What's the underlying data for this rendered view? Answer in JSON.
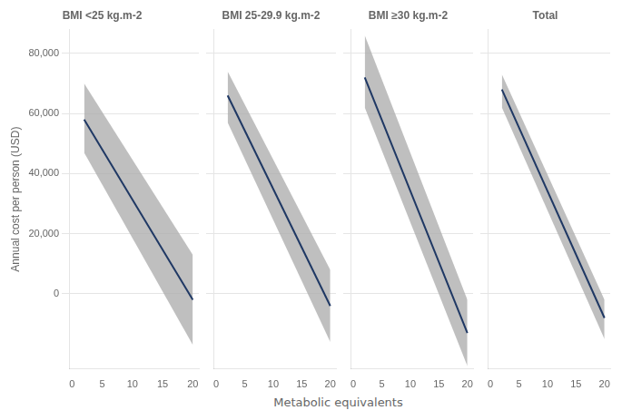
{
  "chart_data": [
    {
      "type": "line",
      "title": "BMI <25 kg.m-2",
      "xlabel": "Metabolic equivalents",
      "ylabel": "Annual cost per person (USD)",
      "x": [
        2,
        20
      ],
      "series": [
        {
          "type": "line",
          "color": "#1f3864",
          "values": [
            58000,
            -2000
          ]
        },
        {
          "type": "band",
          "color": "#aaaaaa",
          "lower": [
            47000,
            -17000
          ],
          "upper": [
            70000,
            13000
          ]
        }
      ],
      "xlim": [
        -0.5,
        21
      ],
      "xticks": [
        0,
        5,
        10,
        15,
        20
      ],
      "ylim": [
        -25000,
        88000
      ],
      "yticks": [
        0,
        {
          "value": 20000,
          "label": "20,000"
        },
        {
          "value": 40000,
          "label": "40,000"
        },
        {
          "value": 60000,
          "label": "60,000"
        },
        {
          "value": 80000,
          "label": "80,000"
        }
      ],
      "grid": true
    },
    {
      "type": "line",
      "title": "BMI 25-29.9 kg.m-2",
      "x": [
        2,
        20
      ],
      "series": [
        {
          "type": "line",
          "color": "#1f3864",
          "values": [
            66000,
            -4000
          ]
        },
        {
          "type": "band",
          "color": "#aaaaaa",
          "lower": [
            57000,
            -16000
          ],
          "upper": [
            74000,
            8000
          ]
        }
      ],
      "xlim": [
        -0.5,
        21
      ],
      "xticks": [
        0,
        5,
        10,
        15,
        20
      ],
      "ylim": [
        -25000,
        88000
      ],
      "yticks": [
        0,
        {
          "value": 20000,
          "label": "20,000"
        },
        {
          "value": 40000,
          "label": "40,000"
        },
        {
          "value": 60000,
          "label": "60,000"
        },
        {
          "value": 80000,
          "label": "80,000"
        }
      ],
      "grid": true,
      "tick_labels": "x"
    },
    {
      "type": "line",
      "title": "BMI ≥30 kg.m-2",
      "x": [
        2,
        20
      ],
      "series": [
        {
          "type": "line",
          "color": "#1f3864",
          "values": [
            72000,
            -13000
          ]
        },
        {
          "type": "band",
          "color": "#aaaaaa",
          "lower": [
            62000,
            -24000
          ],
          "upper": [
            86000,
            -2000
          ]
        }
      ],
      "xlim": [
        -0.5,
        21
      ],
      "xticks": [
        0,
        5,
        10,
        15,
        20
      ],
      "ylim": [
        -25000,
        88000
      ],
      "yticks": [
        0,
        {
          "value": 20000,
          "label": "20,000"
        },
        {
          "value": 40000,
          "label": "40,000"
        },
        {
          "value": 60000,
          "label": "60,000"
        },
        {
          "value": 80000,
          "label": "80,000"
        }
      ],
      "grid": true,
      "tick_labels": "x"
    },
    {
      "type": "line",
      "title": "Total",
      "x": [
        2,
        20
      ],
      "series": [
        {
          "type": "line",
          "color": "#1f3864",
          "values": [
            68000,
            -8000
          ]
        },
        {
          "type": "band",
          "color": "#aaaaaa",
          "lower": [
            62000,
            -15000
          ],
          "upper": [
            73000,
            -2000
          ]
        }
      ],
      "xlim": [
        -0.5,
        21
      ],
      "xticks": [
        0,
        5,
        10,
        15,
        20
      ],
      "ylim": [
        -25000,
        88000
      ],
      "yticks": [
        0,
        {
          "value": 20000,
          "label": "20,000"
        },
        {
          "value": 40000,
          "label": "40,000"
        },
        {
          "value": 60000,
          "label": "60,000"
        },
        {
          "value": 80000,
          "label": "80,000"
        }
      ],
      "grid": true,
      "tick_labels": "x"
    }
  ]
}
